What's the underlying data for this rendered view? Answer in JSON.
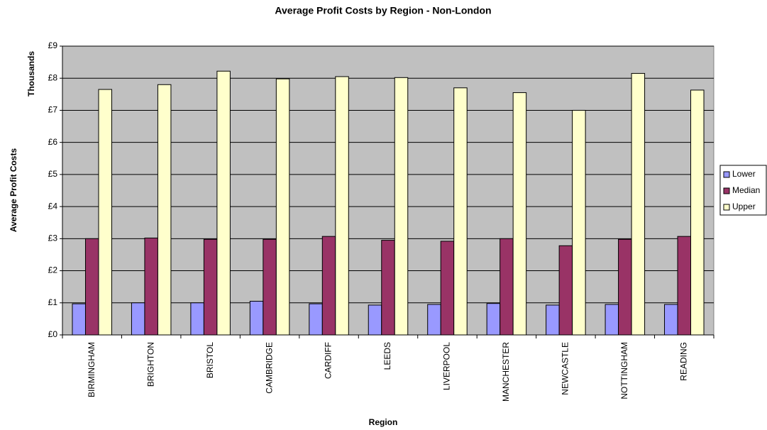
{
  "chart_data": {
    "type": "bar",
    "title": "Average Profit Costs by Region - Non-London",
    "x_label": "Region",
    "y_label": "Average Profit Costs",
    "y_unit_label": "Thousands",
    "categories": [
      "BIRMINGHAM",
      "BRIGHTON",
      "BRISTOL",
      "CAMBRIDGE",
      "CARDIFF",
      "LEEDS",
      "LIVERPOOL",
      "MANCHESTER",
      "NEWCASTLE",
      "NOTTINGHAM",
      "READING"
    ],
    "series": [
      {
        "name": "Lower",
        "color": "#9999ff",
        "values": [
          0.97,
          1.0,
          1.0,
          1.05,
          0.97,
          0.93,
          0.95,
          0.98,
          0.93,
          0.95,
          0.95
        ]
      },
      {
        "name": "Median",
        "color": "#993366",
        "values": [
          3.0,
          3.02,
          2.98,
          2.98,
          3.07,
          2.95,
          2.92,
          3.0,
          2.78,
          2.98,
          3.07
        ]
      },
      {
        "name": "Upper",
        "color": "#ffffcc",
        "values": [
          7.65,
          7.8,
          8.22,
          7.98,
          8.05,
          8.02,
          7.7,
          7.55,
          7.0,
          8.15,
          7.63
        ]
      }
    ],
    "ylim": [
      0,
      9
    ],
    "yticks": [
      {
        "value": 0,
        "label": "£0"
      },
      {
        "value": 1,
        "label": "£1"
      },
      {
        "value": 2,
        "label": "£2"
      },
      {
        "value": 3,
        "label": "£3"
      },
      {
        "value": 4,
        "label": "£4"
      },
      {
        "value": 5,
        "label": "£5"
      },
      {
        "value": 6,
        "label": "£6"
      },
      {
        "value": 7,
        "label": "£7"
      },
      {
        "value": 8,
        "label": "£8"
      },
      {
        "value": 9,
        "label": "£9"
      }
    ],
    "grid": true,
    "plot_background": "#c0c0c0",
    "legend": "right"
  }
}
